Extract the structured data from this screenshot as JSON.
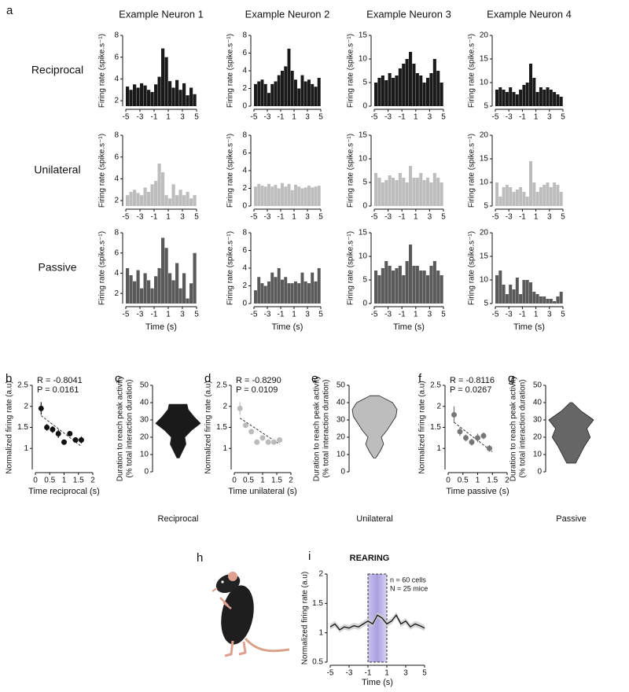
{
  "chart_data": [
    {
      "type": "histogram",
      "panel": "a",
      "title": "Example Neuron 1",
      "row_label": "Reciprocal",
      "ylabel": "Firing rate (spike.s⁻¹)",
      "bins": [
        -5,
        -4.5,
        -4,
        -3.5,
        -3,
        -2.5,
        -2,
        -1.5,
        -1,
        -0.5,
        0,
        0.5,
        1,
        1.5,
        2,
        2.5,
        3,
        3.5,
        4,
        4.5,
        5
      ],
      "values": [
        3.3,
        3,
        3.5,
        3.2,
        3.6,
        3.4,
        3,
        2.8,
        3.5,
        4.2,
        6.8,
        6,
        3.8,
        3.2,
        3.9,
        3,
        3.6,
        2.5,
        3.2,
        2.6
      ],
      "color": "#1a1a1a",
      "xlim": [
        -5,
        5
      ],
      "xticks": [
        -5,
        -3,
        -1,
        1,
        3,
        5
      ],
      "ylim": [
        1.5,
        8
      ],
      "yticks": [
        2,
        4,
        6,
        8
      ]
    },
    {
      "type": "histogram",
      "title": "Example Neuron 2",
      "ylabel": "Firing rate (spike.s⁻¹)",
      "bins": [
        -5,
        -4.5,
        -4,
        -3.5,
        -3,
        -2.5,
        -2,
        -1.5,
        -1,
        -0.5,
        0,
        0.5,
        1,
        1.5,
        2,
        2.5,
        3,
        3.5,
        4,
        4.5,
        5
      ],
      "values": [
        2.5,
        2.8,
        3,
        2.5,
        1.5,
        2.5,
        2.8,
        3.5,
        4,
        4.5,
        6.5,
        4,
        3,
        2,
        3.5,
        2.8,
        3,
        2.5,
        2.2,
        3.2
      ],
      "color": "#1a1a1a",
      "xlim": [
        -5,
        5
      ],
      "xticks": [
        -5,
        -3,
        -1,
        1,
        3,
        5
      ],
      "ylim": [
        0,
        8
      ],
      "yticks": [
        0,
        2,
        4,
        6,
        8
      ]
    },
    {
      "type": "histogram",
      "title": "Example Neuron 3",
      "ylabel": "Firing rate (spike.s⁻¹)",
      "bins": [
        -5,
        -4.5,
        -4,
        -3.5,
        -3,
        -2.5,
        -2,
        -1.5,
        -1,
        -0.5,
        0,
        0.5,
        1,
        1.5,
        2,
        2.5,
        3,
        3.5,
        4,
        4.5,
        5
      ],
      "values": [
        5,
        6,
        6.5,
        5.5,
        7,
        6,
        6.5,
        8,
        9,
        10,
        11.5,
        9,
        7,
        6.5,
        5,
        6,
        7,
        10,
        7.5,
        5
      ],
      "color": "#1a1a1a",
      "xlim": [
        -5,
        5
      ],
      "xticks": [
        -5,
        -3,
        -1,
        1,
        3,
        5
      ],
      "ylim": [
        0,
        15
      ],
      "yticks": [
        0,
        5,
        10,
        15
      ]
    },
    {
      "type": "histogram",
      "title": "Example Neuron 4",
      "ylabel": "Firing rate (spike.s⁻¹)",
      "bins": [
        -5,
        -4.5,
        -4,
        -3.5,
        -3,
        -2.5,
        -2,
        -1.5,
        -1,
        -0.5,
        0,
        0.5,
        1,
        1.5,
        2,
        2.5,
        3,
        3.5,
        4,
        4.5,
        5
      ],
      "values": [
        8.5,
        9,
        8.5,
        8,
        9,
        8,
        7.5,
        8.5,
        9.5,
        10,
        14,
        11,
        8,
        9,
        8.5,
        9,
        8.5,
        8,
        7.5,
        7
      ],
      "color": "#1a1a1a",
      "xlim": [
        -5,
        5
      ],
      "xticks": [
        -5,
        -3,
        -1,
        1,
        3,
        5
      ],
      "ylim": [
        5,
        20
      ],
      "yticks": [
        5,
        10,
        15,
        20
      ]
    },
    {
      "type": "histogram",
      "row_label": "Unilateral",
      "ylabel": "Firing rate (spike.s⁻¹)",
      "bins": [
        -5,
        -4.5,
        -4,
        -3.5,
        -3,
        -2.5,
        -2,
        -1.5,
        -1,
        -0.5,
        0,
        0.5,
        1,
        1.5,
        2,
        2.5,
        3,
        3.5,
        4,
        4.5,
        5
      ],
      "values": [
        2.5,
        2.8,
        3,
        2.7,
        2.5,
        3.2,
        2.8,
        3.5,
        3.8,
        5.4,
        4.6,
        2.5,
        2.2,
        3.5,
        2.5,
        3,
        2.5,
        2.8,
        2.2,
        2.5
      ],
      "color": "#bdbdbd",
      "xlim": [
        -5,
        5
      ],
      "xticks": [
        -5,
        -3,
        -1,
        1,
        3,
        5
      ],
      "ylim": [
        1.5,
        8
      ],
      "yticks": [
        2,
        4,
        6,
        8
      ]
    },
    {
      "type": "histogram",
      "ylabel": "Firing rate (spike.s⁻¹)",
      "bins": [
        -5,
        -4.5,
        -4,
        -3.5,
        -3,
        -2.5,
        -2,
        -1.5,
        -1,
        -0.5,
        0,
        0.5,
        1,
        1.5,
        2,
        2.5,
        3,
        3.5,
        4,
        4.5,
        5
      ],
      "values": [
        2.2,
        2.5,
        2.3,
        2.2,
        2.5,
        2.2,
        2.4,
        2,
        2.6,
        2.2,
        2.5,
        1.8,
        2.4,
        2.2,
        2,
        2.1,
        2.3,
        2.1,
        2.2,
        2.3
      ],
      "color": "#bdbdbd",
      "xlim": [
        -5,
        5
      ],
      "xticks": [
        -5,
        -3,
        -1,
        1,
        3,
        5
      ],
      "ylim": [
        0,
        8
      ],
      "yticks": [
        0,
        2,
        4,
        6,
        8
      ]
    },
    {
      "type": "histogram",
      "ylabel": "Firing rate (spike.s⁻¹)",
      "bins": [
        -5,
        -4.5,
        -4,
        -3.5,
        -3,
        -2.5,
        -2,
        -1.5,
        -1,
        -0.5,
        0,
        0.5,
        1,
        1.5,
        2,
        2.5,
        3,
        3.5,
        4,
        4.5,
        5
      ],
      "values": [
        7,
        6,
        5,
        5.5,
        6.5,
        6,
        5.5,
        7,
        6,
        5,
        8.5,
        6,
        6,
        7,
        5.5,
        6,
        5,
        7,
        6,
        5
      ],
      "color": "#bdbdbd",
      "xlim": [
        -5,
        5
      ],
      "xticks": [
        -5,
        -3,
        -1,
        1,
        3,
        5
      ],
      "ylim": [
        0,
        15
      ],
      "yticks": [
        0,
        5,
        10,
        15
      ]
    },
    {
      "type": "histogram",
      "ylabel": "Firing rate (spike.s⁻¹)",
      "bins": [
        -5,
        -4.5,
        -4,
        -3.5,
        -3,
        -2.5,
        -2,
        -1.5,
        -1,
        -0.5,
        0,
        0.5,
        1,
        1.5,
        2,
        2.5,
        3,
        3.5,
        4,
        4.5,
        5
      ],
      "values": [
        10,
        7,
        9,
        9.5,
        9,
        8,
        8.5,
        9,
        8,
        7,
        14.5,
        10,
        8,
        9,
        9.5,
        10,
        9,
        10,
        9.5,
        8
      ],
      "color": "#bdbdbd",
      "xlim": [
        -5,
        5
      ],
      "xticks": [
        -5,
        -3,
        -1,
        1,
        3,
        5
      ],
      "ylim": [
        5,
        20
      ],
      "yticks": [
        5,
        10,
        15,
        20
      ]
    },
    {
      "type": "histogram",
      "row_label": "Passive",
      "ylabel": "Firing rate (spike.s⁻¹)",
      "xlabel": "Time (s)",
      "bins": [
        -5,
        -4.5,
        -4,
        -3.5,
        -3,
        -2.5,
        -2,
        -1.5,
        -1,
        -0.5,
        0,
        0.5,
        1,
        1.5,
        2,
        2.5,
        3,
        3.5,
        4,
        4.5,
        5
      ],
      "values": [
        4.5,
        3.8,
        3.2,
        4.3,
        2.5,
        4,
        3.3,
        2.5,
        3.7,
        4.5,
        7.5,
        6.5,
        4,
        3.3,
        5,
        2.5,
        4,
        1.5,
        3,
        6
      ],
      "color": "#5a5a5a",
      "xlim": [
        -5,
        5
      ],
      "xticks": [
        -5,
        -3,
        -1,
        1,
        3,
        5
      ],
      "ylim": [
        1,
        8
      ],
      "yticks": [
        2,
        4,
        6,
        8
      ]
    },
    {
      "type": "histogram",
      "ylabel": "Firing rate (spike.s⁻¹)",
      "xlabel": "Time (s)",
      "bins": [
        -5,
        -4.5,
        -4,
        -3.5,
        -3,
        -2.5,
        -2,
        -1.5,
        -1,
        -0.5,
        0,
        0.5,
        1,
        1.5,
        2,
        2.5,
        3,
        3.5,
        4,
        4.5,
        5
      ],
      "values": [
        1.5,
        3,
        2.3,
        2,
        2.5,
        3.5,
        3,
        4,
        2.7,
        3,
        2.3,
        2.3,
        2.5,
        2.3,
        3.5,
        2.5,
        2.3,
        3.5,
        2.5,
        4
      ],
      "color": "#5a5a5a",
      "xlim": [
        -5,
        5
      ],
      "xticks": [
        -5,
        -3,
        -1,
        1,
        3,
        5
      ],
      "ylim": [
        0,
        8
      ],
      "yticks": [
        0,
        2,
        4,
        6,
        8
      ]
    },
    {
      "type": "histogram",
      "ylabel": "Firing rate (spike.s⁻¹)",
      "xlabel": "Time (s)",
      "bins": [
        -5,
        -4.5,
        -4,
        -3.5,
        -3,
        -2.5,
        -2,
        -1.5,
        -1,
        -0.5,
        0,
        0.5,
        1,
        1.5,
        2,
        2.5,
        3,
        3.5,
        4,
        4.5,
        5
      ],
      "values": [
        7,
        6,
        7.5,
        9,
        8,
        7,
        7.5,
        8,
        6,
        9,
        12.5,
        8,
        8,
        7,
        7,
        6,
        8,
        9,
        7,
        6
      ],
      "color": "#5a5a5a",
      "xlim": [
        -5,
        5
      ],
      "xticks": [
        -5,
        -3,
        -1,
        1,
        3,
        5
      ],
      "ylim": [
        0,
        15
      ],
      "yticks": [
        0,
        5,
        10,
        15
      ]
    },
    {
      "type": "histogram",
      "ylabel": "Firing rate (spike.s⁻¹)",
      "xlabel": "Time (s)",
      "bins": [
        -5,
        -4.5,
        -4,
        -3.5,
        -3,
        -2.5,
        -2,
        -1.5,
        -1,
        -0.5,
        0,
        0.5,
        1,
        1.5,
        2,
        2.5,
        3,
        3.5,
        4,
        4.5,
        5
      ],
      "values": [
        11,
        12,
        9,
        7,
        9,
        8,
        10.5,
        7,
        10,
        10,
        9.5,
        7.5,
        7,
        6.5,
        6.5,
        6,
        6,
        5.5,
        6.5,
        7.5
      ],
      "color": "#5a5a5a",
      "xlim": [
        -5,
        5
      ],
      "xticks": [
        -5,
        -3,
        -1,
        1,
        3,
        5
      ],
      "ylim": [
        5,
        20
      ],
      "yticks": [
        5,
        10,
        15,
        20
      ]
    },
    {
      "type": "scatter",
      "panel": "b",
      "annotations": [
        "R = -0.8041",
        "P = 0.0161"
      ],
      "ylabel": "Normalized firing rate (a.u)",
      "xlabel": "Time reciprocal (s)",
      "x": [
        0.2,
        0.4,
        0.6,
        0.8,
        1,
        1.2,
        1.4,
        1.6
      ],
      "values": [
        1.95,
        1.5,
        1.45,
        1.35,
        1.15,
        1.35,
        1.2,
        1.2
      ],
      "errors": [
        0.15,
        0.08,
        0.08,
        0.1,
        0.06,
        0.06,
        0.06,
        0.08
      ],
      "trend_line": {
        "x": [
          0.2,
          1.6
        ],
        "y": [
          1.78,
          1.05
        ]
      },
      "color": "#111111",
      "xlim": [
        0,
        2
      ],
      "xticks": [
        0,
        0.5,
        1,
        1.5,
        2
      ],
      "ylim": [
        0.5,
        2.5
      ],
      "yticks": [
        1,
        1.5,
        2,
        2.5
      ]
    },
    {
      "type": "violin",
      "panel": "c",
      "category": "Reciprocal",
      "ylabel": [
        "Duration to reach peak activity",
        "(% total interaction duration)"
      ],
      "density": {
        "y": [
          8,
          12,
          16,
          20,
          24,
          28,
          32,
          36,
          39
        ],
        "width": [
          0.05,
          0.2,
          0.35,
          0.3,
          0.6,
          1,
          0.7,
          0.45,
          0.4
        ]
      },
      "color": "#1a1a1a",
      "ylim": [
        0,
        50
      ],
      "yticks": [
        0,
        10,
        20,
        30,
        40,
        50
      ]
    },
    {
      "type": "scatter",
      "panel": "d",
      "annotations": [
        "R = -0.8290",
        "P = 0.0109"
      ],
      "ylabel": "Normalized firing rate (a.u)",
      "xlabel": "Time unilateral (s)",
      "x": [
        0.2,
        0.4,
        0.6,
        0.8,
        1,
        1.2,
        1.4,
        1.6
      ],
      "values": [
        1.95,
        1.55,
        1.4,
        1.15,
        1.25,
        1.15,
        1.15,
        1.2
      ],
      "errors": [
        0.15,
        0.06,
        0.06,
        0.05,
        0.06,
        0.05,
        0.05,
        0.06
      ],
      "trend_line": {
        "x": [
          0.2,
          1.6
        ],
        "y": [
          1.72,
          1.1
        ]
      },
      "color": "#bbbbbb",
      "xlim": [
        0,
        2
      ],
      "xticks": [
        0,
        0.5,
        1,
        1.5,
        2
      ],
      "ylim": [
        0.5,
        2.5
      ],
      "yticks": [
        1,
        1.5,
        2,
        2.5
      ]
    },
    {
      "type": "violin",
      "panel": "e",
      "category": "Unilateral",
      "ylabel": [
        "Duration to reach peak activity",
        "(% total interaction duration)"
      ],
      "density": {
        "y": [
          8,
          12,
          16,
          20,
          24,
          28,
          32,
          36,
          40,
          44
        ],
        "width": [
          0.05,
          0.25,
          0.4,
          0.3,
          0.55,
          0.75,
          0.95,
          1,
          0.8,
          0.2
        ]
      },
      "color": "#bdbdbd",
      "ylim": [
        0,
        50
      ],
      "yticks": [
        0,
        10,
        20,
        30,
        40,
        50
      ]
    },
    {
      "type": "scatter",
      "panel": "f",
      "annotations": [
        "R = -0.8116",
        "P = 0.0267"
      ],
      "ylabel": "Normalized firing rate (a.u)",
      "xlabel": "Time passive (s)",
      "x": [
        0.2,
        0.4,
        0.6,
        0.8,
        1,
        1.2,
        1.4
      ],
      "values": [
        1.8,
        1.4,
        1.25,
        1.15,
        1.25,
        1.3,
        1.0
      ],
      "errors": [
        0.2,
        0.1,
        0.08,
        0.08,
        0.1,
        0.08,
        0.08
      ],
      "trend_line": {
        "x": [
          0.2,
          1.5
        ],
        "y": [
          1.62,
          0.92
        ]
      },
      "color": "#777777",
      "xlim": [
        0,
        2
      ],
      "xticks": [
        0,
        0.5,
        1,
        1.5,
        2
      ],
      "ylim": [
        0.5,
        2.5
      ],
      "yticks": [
        1,
        1.5,
        2,
        2.5
      ]
    },
    {
      "type": "violin",
      "panel": "g",
      "category": "Passive",
      "ylabel": [
        "Duration to reach peak activity",
        "(% total interaction duration)"
      ],
      "density": {
        "y": [
          5,
          10,
          15,
          20,
          25,
          30,
          35,
          40
        ],
        "width": [
          0.2,
          0.4,
          0.6,
          0.85,
          0.7,
          1,
          0.45,
          0.05
        ]
      },
      "color": "#666666",
      "ylim": [
        0,
        50
      ],
      "yticks": [
        0,
        10,
        20,
        30,
        40,
        50
      ]
    },
    {
      "type": "line",
      "panel": "i",
      "title": "REARING",
      "annotations": [
        "n = 60 cells",
        "N = 25 mice"
      ],
      "ylabel": "Normalized firing rate (a.u)",
      "xlabel": "Time (s)",
      "x": [
        -5,
        -4.5,
        -4,
        -3.5,
        -3,
        -2.5,
        -2,
        -1.5,
        -1,
        -0.5,
        0,
        0.5,
        1,
        1.5,
        2,
        2.5,
        3,
        3.5,
        4,
        4.5,
        5
      ],
      "values": [
        1.1,
        1.15,
        1.05,
        1.1,
        1.08,
        1.12,
        1.1,
        1.15,
        1.2,
        1.15,
        1.3,
        1.25,
        1.15,
        1.2,
        1.3,
        1.15,
        1.2,
        1.1,
        1.15,
        1.12,
        1.08
      ],
      "highlight": [
        -1,
        1
      ],
      "color": "#111111",
      "xlim": [
        -5,
        5
      ],
      "xticks": [
        -5,
        -3,
        -1,
        1,
        3,
        5
      ],
      "ylim": [
        0.5,
        2
      ],
      "yticks": [
        0.5,
        1,
        1.5,
        2
      ]
    }
  ],
  "h_panel": "h"
}
